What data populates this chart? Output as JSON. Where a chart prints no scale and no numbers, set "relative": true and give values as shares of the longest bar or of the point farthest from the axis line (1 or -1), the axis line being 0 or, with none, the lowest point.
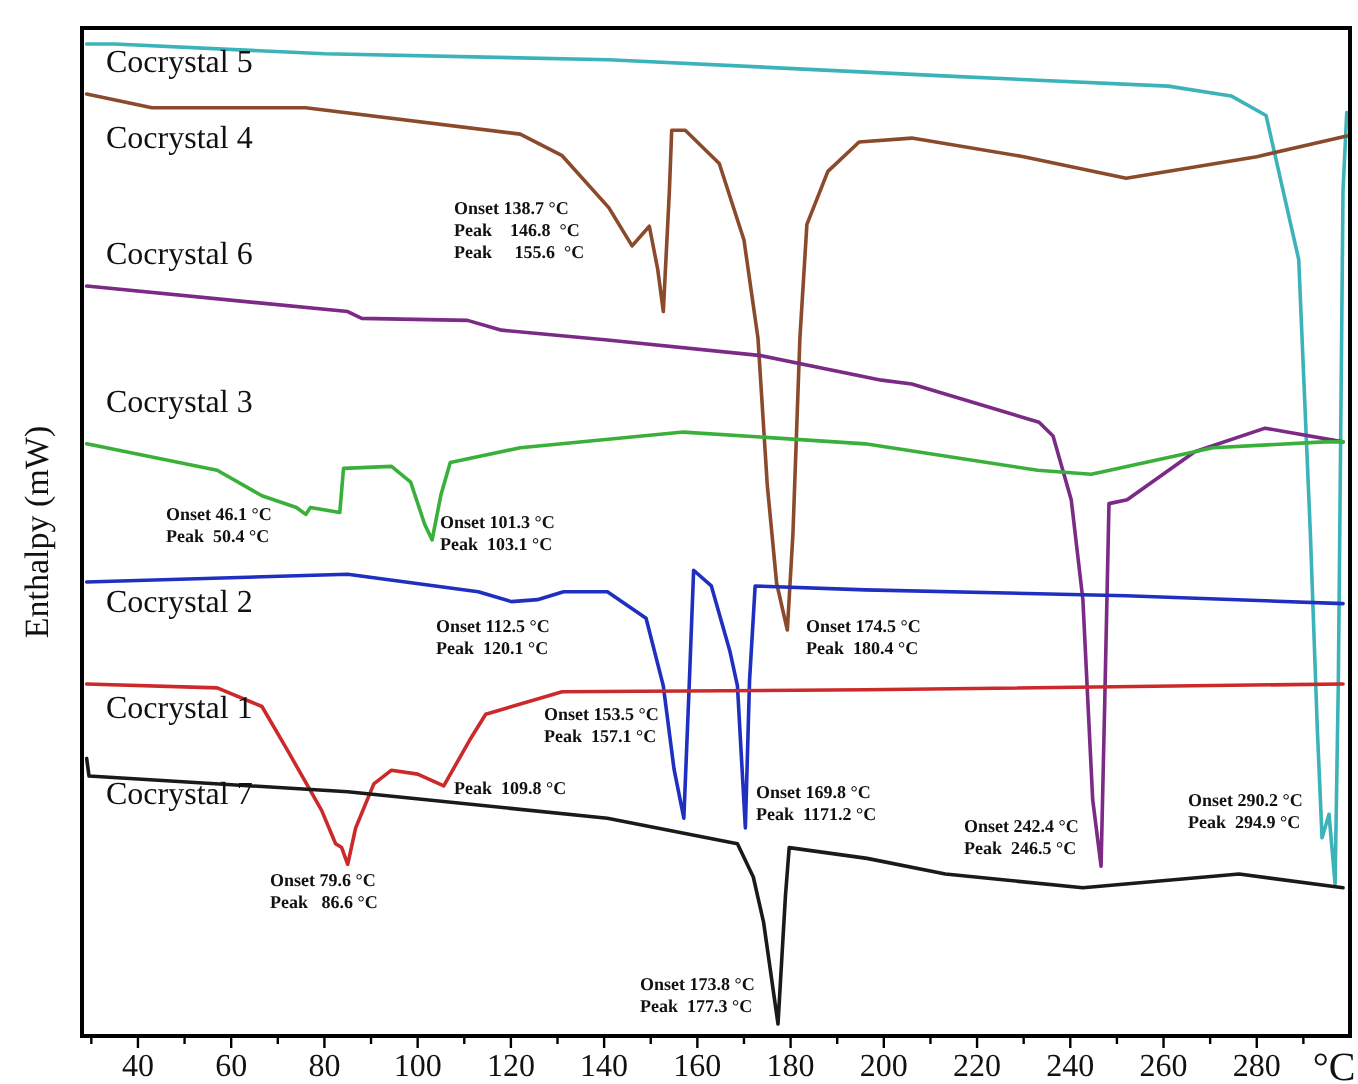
{
  "chart_data": {
    "type": "line",
    "relative": true,
    "xlabel": "°C",
    "ylabel": "Enthalpy (mW)",
    "xlim": [
      28,
      300
    ],
    "xticks": [
      {
        "value": 30,
        "label": null
      },
      40,
      {
        "value": 50,
        "label": null
      },
      60,
      {
        "value": 70,
        "label": null
      },
      80,
      {
        "value": 90,
        "label": null
      },
      100,
      {
        "value": 110,
        "label": null
      },
      120,
      {
        "value": 130,
        "label": null
      },
      140,
      {
        "value": 150,
        "label": null
      },
      160,
      {
        "value": 170,
        "label": null
      },
      180,
      {
        "value": 190,
        "label": null
      },
      200,
      {
        "value": 210,
        "label": null
      },
      220,
      {
        "value": 230,
        "label": null
      },
      240,
      {
        "value": 250,
        "label": null
      },
      260,
      {
        "value": 270,
        "label": null
      },
      280,
      {
        "value": 290,
        "label": null
      }
    ],
    "legend": false,
    "grid": false,
    "marker": "none",
    "line_style": "solid",
    "series": [
      {
        "name": "Cocrystal 5",
        "color": "#3bb3b8",
        "x": [
          29,
          35,
          80,
          141,
          215,
          261,
          274.5,
          282,
          289,
          291.5,
          293,
          294,
          295.5,
          296.8,
          297.5,
          298.5,
          299.3
        ],
        "values": [
          1.0,
          1.0,
          0.99,
          0.984,
          0.967,
          0.957,
          0.947,
          0.927,
          0.78,
          0.5,
          0.3,
          0.19,
          0.214,
          0.143,
          0.35,
          0.85,
          0.93
        ]
      },
      {
        "name": "Cocrystal 4",
        "color": "#8b4a2b",
        "x": [
          29,
          43,
          76,
          122,
          131,
          141,
          146,
          149.7,
          151.5,
          152.7,
          154,
          154.5,
          157.4,
          164.7,
          170,
          173,
          175,
          177,
          179.3,
          180.5,
          182,
          183.5,
          188,
          194.7,
          206,
          230,
          252,
          280,
          299.3
        ],
        "values": [
          0.949,
          0.935,
          0.935,
          0.908,
          0.886,
          0.833,
          0.794,
          0.814,
          0.77,
          0.727,
          0.85,
          0.912,
          0.912,
          0.878,
          0.8,
          0.7,
          0.55,
          0.45,
          0.402,
          0.5,
          0.7,
          0.816,
          0.87,
          0.9,
          0.904,
          0.885,
          0.863,
          0.885,
          0.906
        ]
      },
      {
        "name": "Cocrystal 6",
        "color": "#7b2a85",
        "x": [
          29,
          85,
          88,
          110.7,
          118,
          140.7,
          173.7,
          199.5,
          206,
          233.3,
          236.3,
          240.2,
          242.7,
          244.8,
          246.6,
          247.4,
          248.3,
          252.2,
          266.7,
          281.8,
          298.5
        ],
        "values": [
          0.753,
          0.727,
          0.72,
          0.718,
          0.708,
          0.698,
          0.682,
          0.657,
          0.653,
          0.614,
          0.6,
          0.535,
          0.433,
          0.229,
          0.161,
          0.331,
          0.531,
          0.535,
          0.584,
          0.608,
          0.594
        ]
      },
      {
        "name": "Cocrystal 3",
        "color": "#3ab03a",
        "x": [
          29,
          57,
          66.6,
          74,
          76,
          77,
          83.3,
          84.1,
          94.4,
          98.5,
          101.5,
          103.1,
          105,
          107,
          122,
          157,
          196,
          233,
          244.5,
          270.6,
          294.6,
          298.5
        ],
        "values": [
          0.592,
          0.565,
          0.539,
          0.527,
          0.52,
          0.527,
          0.522,
          0.567,
          0.569,
          0.553,
          0.51,
          0.494,
          0.54,
          0.573,
          0.588,
          0.604,
          0.592,
          0.565,
          0.561,
          0.588,
          0.594,
          0.594
        ]
      },
      {
        "name": "Cocrystal 2",
        "color": "#1f2fc0",
        "x": [
          29,
          85,
          113,
          120.1,
          125.7,
          131.3,
          140.7,
          149,
          152.7,
          155,
          157.1,
          158.3,
          159.2,
          163,
          167,
          168.6,
          170.3,
          171.2,
          172.4,
          196,
          252,
          298.5
        ],
        "values": [
          0.451,
          0.459,
          0.441,
          0.431,
          0.433,
          0.441,
          0.441,
          0.414,
          0.345,
          0.26,
          0.21,
          0.351,
          0.463,
          0.447,
          0.38,
          0.345,
          0.2,
          0.351,
          0.447,
          0.443,
          0.437,
          0.429
        ]
      },
      {
        "name": "Cocrystal 1",
        "color": "#cc2a2a",
        "x": [
          29,
          57,
          66.6,
          72,
          79.4,
          82.4,
          83.7,
          85,
          86.7,
          90.6,
          94.4,
          100,
          105.6,
          111.2,
          114.6,
          131,
          196,
          298.5
        ],
        "values": [
          0.347,
          0.343,
          0.324,
          0.28,
          0.218,
          0.184,
          0.18,
          0.163,
          0.2,
          0.245,
          0.259,
          0.255,
          0.243,
          0.29,
          0.316,
          0.339,
          0.341,
          0.347
        ]
      },
      {
        "name": "Cocrystal 7",
        "color": "#1a1a1a",
        "x": [
          29,
          29.5,
          85,
          140.7,
          168.6,
          172,
          174.2,
          177.3,
          178.9,
          179.7,
          196.4,
          213.2,
          242.7,
          276.2,
          298.5
        ],
        "values": [
          0.271,
          0.253,
          0.237,
          0.21,
          0.184,
          0.15,
          0.104,
          0,
          0.131,
          0.18,
          0.169,
          0.153,
          0.139,
          0.153,
          0.139
        ]
      }
    ],
    "annotations": [
      "Onset 138.7 °C\nPeak    146.8  °C\nPeak     155.6  °C",
      "Onset 46.1 °C\nPeak  50.4 °C",
      "Onset 101.3 °C\nPeak  103.1 °C",
      "Onset 112.5 °C\nPeak  120.1 °C",
      "Onset 174.5 °C\nPeak  180.4 °C",
      "Onset 153.5 °C\nPeak  157.1 °C",
      "Peak  109.8 °C",
      "Onset 169.8 °C\nPeak  1171.2 °C",
      "Onset 79.6 °C\nPeak   86.6 °C",
      "Onset 173.8 °C\nPeak  177.3 °C",
      "Onset 242.4 °C\nPeak  246.5 °C",
      "Onset 290.2 °C\nPeak  294.9 °C"
    ]
  }
}
